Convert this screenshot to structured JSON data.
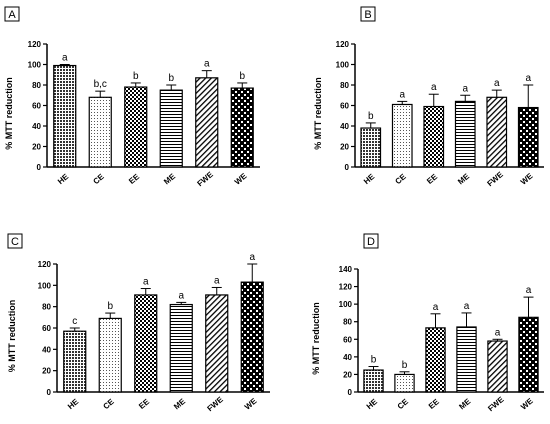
{
  "chart_data": [
    {
      "type": "bar",
      "panel_label": "A",
      "ylabel": "% MTT reduction",
      "ylim": [
        0,
        120
      ],
      "yticks": [
        "0",
        "20",
        "40",
        "60",
        "80",
        "100",
        "120"
      ],
      "categories": [
        "HE",
        "CE",
        "EE",
        "ME",
        "FWE",
        "WE"
      ],
      "values": [
        99,
        68,
        78,
        75,
        87,
        77
      ],
      "errors": [
        1,
        6,
        4,
        5,
        7,
        5
      ],
      "significance": [
        "a",
        "b,c",
        "b",
        "b",
        "a",
        "b"
      ],
      "patterns": [
        "p-dark-check",
        "p-dots",
        "p-check",
        "p-hlines",
        "p-diag",
        "p-check-bold"
      ]
    },
    {
      "type": "bar",
      "panel_label": "B",
      "ylabel": "% MTT reduction",
      "ylim": [
        0,
        120
      ],
      "yticks": [
        "0",
        "20",
        "40",
        "60",
        "80",
        "100",
        "120"
      ],
      "categories": [
        "HE",
        "CE",
        "EE",
        "ME",
        "FWE",
        "WE"
      ],
      "values": [
        38,
        61,
        59,
        64,
        68,
        58
      ],
      "errors": [
        5,
        3,
        12,
        6,
        7,
        22
      ],
      "significance": [
        "b",
        "a",
        "a",
        "a",
        "a",
        "a"
      ],
      "patterns": [
        "p-dark-check",
        "p-dots",
        "p-check",
        "p-hlines",
        "p-diag",
        "p-check-bold"
      ]
    },
    {
      "type": "bar",
      "panel_label": "C",
      "ylabel": "% MTT reduction",
      "ylim": [
        0,
        120
      ],
      "yticks": [
        "0",
        "20",
        "40",
        "60",
        "80",
        "100",
        "120"
      ],
      "categories": [
        "HE",
        "CE",
        "EE",
        "ME",
        "FWE",
        "WE"
      ],
      "values": [
        57,
        69,
        91,
        82,
        91,
        103
      ],
      "errors": [
        3,
        5,
        6,
        2,
        7,
        17
      ],
      "significance": [
        "c",
        "b",
        "a",
        "a",
        "a",
        "a"
      ],
      "patterns": [
        "p-dark-check",
        "p-dots",
        "p-check",
        "p-hlines",
        "p-diag",
        "p-check-bold"
      ]
    },
    {
      "type": "bar",
      "panel_label": "D",
      "ylabel": "% MTT reduction",
      "ylim": [
        0,
        140
      ],
      "yticks": [
        "0",
        "20",
        "40",
        "60",
        "80",
        "100",
        "120",
        "140"
      ],
      "categories": [
        "HE",
        "CE",
        "EE",
        "ME",
        "FWE",
        "WE"
      ],
      "values": [
        25,
        20,
        73,
        74,
        58,
        85
      ],
      "errors": [
        4,
        3,
        16,
        16,
        2,
        23
      ],
      "significance": [
        "b",
        "b",
        "a",
        "a",
        "a",
        "a"
      ],
      "patterns": [
        "p-dark-check",
        "p-dots",
        "p-check",
        "p-hlines",
        "p-diag",
        "p-check-bold"
      ]
    }
  ]
}
